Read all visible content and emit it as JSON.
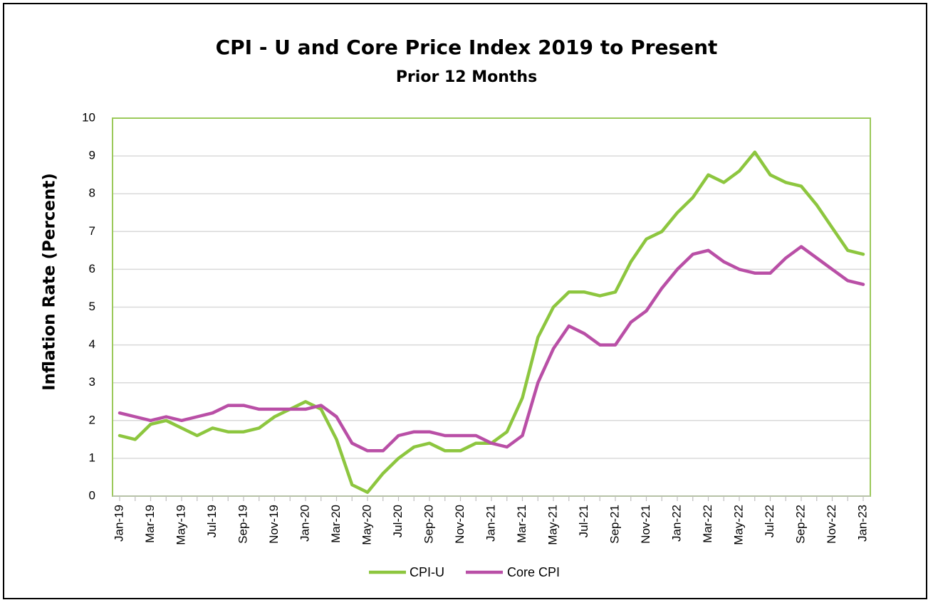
{
  "chart_data": {
    "type": "line",
    "title": "CPI - U and Core Price Index 2019 to Present",
    "subtitle": "Prior 12 Months",
    "ylabel": "Inflation Rate (Percent)",
    "xlabel": "",
    "ylim": [
      0,
      10
    ],
    "yticks": [
      0,
      1,
      2,
      3,
      4,
      5,
      6,
      7,
      8,
      9,
      10
    ],
    "grid": true,
    "legend_position": "bottom",
    "categories": [
      "Jan-19",
      "Feb-19",
      "Mar-19",
      "Apr-19",
      "May-19",
      "Jun-19",
      "Jul-19",
      "Aug-19",
      "Sep-19",
      "Oct-19",
      "Nov-19",
      "Dec-19",
      "Jan-20",
      "Feb-20",
      "Mar-20",
      "Apr-20",
      "May-20",
      "Jun-20",
      "Jul-20",
      "Aug-20",
      "Sep-20",
      "Oct-20",
      "Nov-20",
      "Dec-20",
      "Jan-21",
      "Feb-21",
      "Mar-21",
      "Apr-21",
      "May-21",
      "Jun-21",
      "Jul-21",
      "Aug-21",
      "Sep-21",
      "Oct-21",
      "Nov-21",
      "Dec-21",
      "Jan-22",
      "Feb-22",
      "Mar-22",
      "Apr-22",
      "May-22",
      "Jun-22",
      "Jul-22",
      "Aug-22",
      "Sep-22",
      "Oct-22",
      "Nov-22",
      "Dec-22",
      "Jan-23"
    ],
    "tick_labels": [
      "Jan-19",
      "Mar-19",
      "May-19",
      "Jul-19",
      "Sep-19",
      "Nov-19",
      "Jan-20",
      "Mar-20",
      "May-20",
      "Jul-20",
      "Sep-20",
      "Nov-20",
      "Jan-21",
      "Mar-21",
      "May-21",
      "Jul-21",
      "Sep-21",
      "Nov-21",
      "Jan-22",
      "Mar-22",
      "May-22",
      "Jul-22",
      "Sep-22",
      "Nov-22",
      "Jan-23"
    ],
    "series": [
      {
        "name": "CPI-U",
        "color": "#8DC63F",
        "values": [
          1.6,
          1.5,
          1.9,
          2.0,
          1.8,
          1.6,
          1.8,
          1.7,
          1.7,
          1.8,
          2.1,
          2.3,
          2.5,
          2.3,
          1.5,
          0.3,
          0.1,
          0.6,
          1.0,
          1.3,
          1.4,
          1.2,
          1.2,
          1.4,
          1.4,
          1.7,
          2.6,
          4.2,
          5.0,
          5.4,
          5.4,
          5.3,
          5.4,
          6.2,
          6.8,
          7.0,
          7.5,
          7.9,
          8.5,
          8.3,
          8.6,
          9.1,
          8.5,
          8.3,
          8.2,
          7.7,
          7.1,
          6.5,
          6.4
        ]
      },
      {
        "name": "Core CPI",
        "color": "#B94FA6",
        "values": [
          2.2,
          2.1,
          2.0,
          2.1,
          2.0,
          2.1,
          2.2,
          2.4,
          2.4,
          2.3,
          2.3,
          2.3,
          2.3,
          2.4,
          2.1,
          1.4,
          1.2,
          1.2,
          1.6,
          1.7,
          1.7,
          1.6,
          1.6,
          1.6,
          1.4,
          1.3,
          1.6,
          3.0,
          3.9,
          4.5,
          4.3,
          4.0,
          4.0,
          4.6,
          4.9,
          5.5,
          6.0,
          6.4,
          6.5,
          6.2,
          6.0,
          5.9,
          5.9,
          6.3,
          6.6,
          6.3,
          6.0,
          5.7,
          5.6
        ]
      }
    ]
  },
  "colors": {
    "plot_border": "#9BC95A",
    "grid": "#D9D9D9",
    "axis": "#BFBFBF"
  }
}
